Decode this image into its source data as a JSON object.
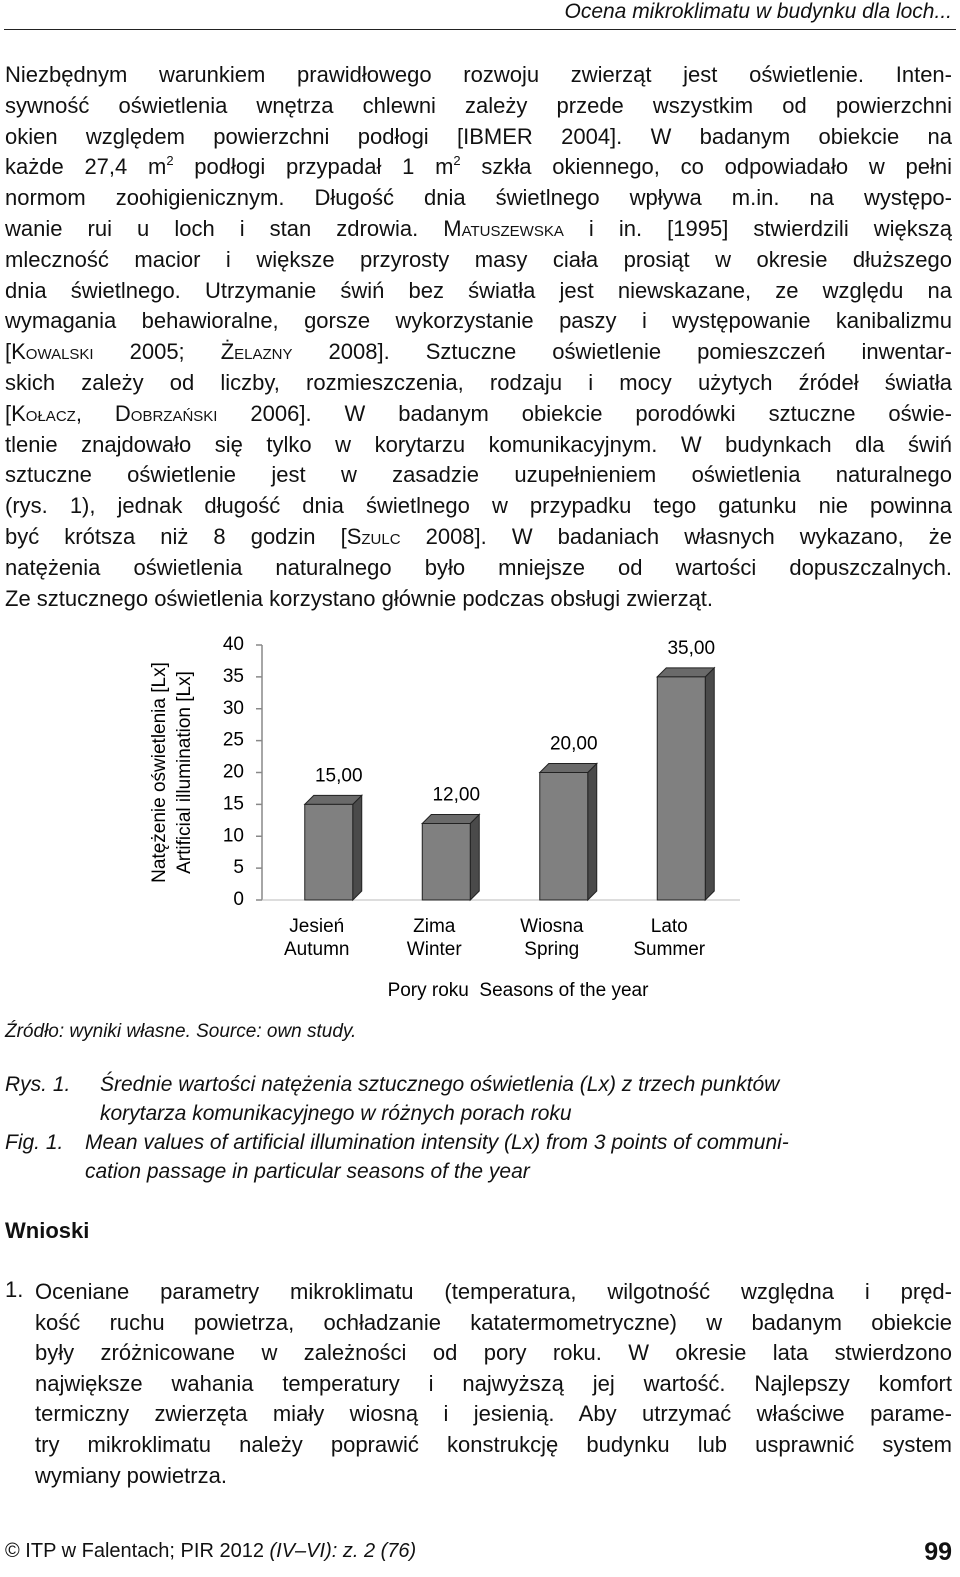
{
  "header": {
    "title": "Ocena mikroklimatu w budynku dla loch..."
  },
  "paragraph": [
    [
      "Niezbędnym warunkiem prawidłowego rozwoju zwierząt jest oświetlenie. Inten-"
    ],
    [
      "sywność oświetlenia wnętrza chlewni zależy przede wszystkim od powierzchni"
    ],
    [
      "okien względem powierzchni podłogi [IBMER 2004]. W badanym obiekcie na"
    ],
    [
      "każde 27,4 m",
      {
        "sup": "2"
      },
      " podłogi przypadał 1 m",
      {
        "sup": "2"
      },
      " szkła okiennego, co odpowiadało w pełni"
    ],
    [
      "normom zoohigienicznym. Długość dnia świetlnego wpływa m.in. na występo-"
    ],
    [
      "wanie rui u loch i stan zdrowia. ",
      {
        "sc": "Matuszewska"
      },
      " i in. [1995] stwierdzili większą"
    ],
    [
      "mleczność macior i większe przyrosty masy ciała prosiąt w okresie dłuższego"
    ],
    [
      "dnia świetlnego. Utrzymanie świń bez światła jest niewskazane, ze względu na"
    ],
    [
      "wymagania behawioralne, gorsze wykorzystanie paszy i występowanie kanibalizmu"
    ],
    [
      "[",
      {
        "sc": "Kowalski"
      },
      " 2005; ",
      {
        "sc": "Żelazny"
      },
      " 2008]. Sztuczne oświetlenie pomieszczeń inwentar-"
    ],
    [
      "skich zależy od liczby, rozmieszczenia, rodzaju i mocy użytych źródeł światła"
    ],
    [
      "[",
      {
        "sc": "Kołacz"
      },
      ", ",
      {
        "sc": "Dobrzański"
      },
      " 2006]. W badanym obiekcie porodówki sztuczne oświe-"
    ],
    [
      "tlenie znajdowało się tylko w korytarzu komunikacyjnym. W budynkach dla świń"
    ],
    [
      "sztuczne oświetlenie jest w zasadzie uzupełnieniem oświetlenia naturalnego"
    ],
    [
      "(rys. 1), jednak długość dnia świetlnego w przypadku tego gatunku nie powinna"
    ],
    [
      "być krótsza niż 8 godzin [",
      {
        "sc": "Szulc"
      },
      " 2008]. W badaniach własnych wykazano, że"
    ],
    [
      "natężenia oświetlenia naturalnego było mniejsze od wartości dopuszczalnych."
    ],
    [
      "Ze sztucznego oświetlenia korzystano głównie podczas obsługi zwierząt."
    ]
  ],
  "chart_data": {
    "type": "bar",
    "ylabel": [
      "Natężenie oświetlenia [Lx]",
      "Artificial illumination [Lx]"
    ],
    "xlabel": "Pory roku  Seasons of the year",
    "categories": [
      [
        "Jesień",
        "Autumn"
      ],
      [
        "Zima",
        "Winter"
      ],
      [
        "Wiosna",
        "Spring"
      ],
      [
        "Lato",
        "Summer"
      ]
    ],
    "values": [
      15,
      12,
      20,
      35
    ],
    "value_labels": [
      "15,00",
      "12,00",
      "20,00",
      "35,00"
    ],
    "color": "#808080",
    "ylim": [
      0,
      40
    ],
    "yticks": [
      0,
      5,
      10,
      15,
      20,
      25,
      30,
      35,
      40
    ]
  },
  "source": "Źródło: wyniki własne. Source: own study.",
  "caption": {
    "rys_label": "Rys. 1.",
    "rys_lines": [
      "Średnie wartości natężenia sztucznego oświetlenia (Lx) z trzech punktów",
      "korytarza komunikacyjnego w różnych porach roku"
    ],
    "fig_label": "Fig. 1.",
    "fig_lines": [
      "Mean values of artificial illumination intensity (Lx) from 3 points of communi-",
      "cation passage in particular seasons of the year"
    ]
  },
  "section": "Wnioski",
  "list": {
    "number": "1.",
    "lines": [
      "Oceniane parametry mikroklimatu (temperatura, wilgotność względna i pręd-",
      "kość ruchu powietrza, ochładzanie katatermometryczne) w badanym obiekcie",
      "były zróżnicowane w zależności od pory roku. W okresie lata stwierdzono",
      "największe wahania temperatury i najwyższą jej wartość. Najlepszy komfort",
      "termiczny zwierzęta miały wiosną i jesienią. Aby utrzymać właściwe parame-",
      "try mikroklimatu należy poprawić konstrukcję budynku lub usprawnić system",
      "wymiany powietrza."
    ]
  },
  "footer": {
    "text": "© ITP w Falentach; PIR 2012 ",
    "issue": "(IV–VI): z. 2 (76)",
    "page": "99"
  }
}
